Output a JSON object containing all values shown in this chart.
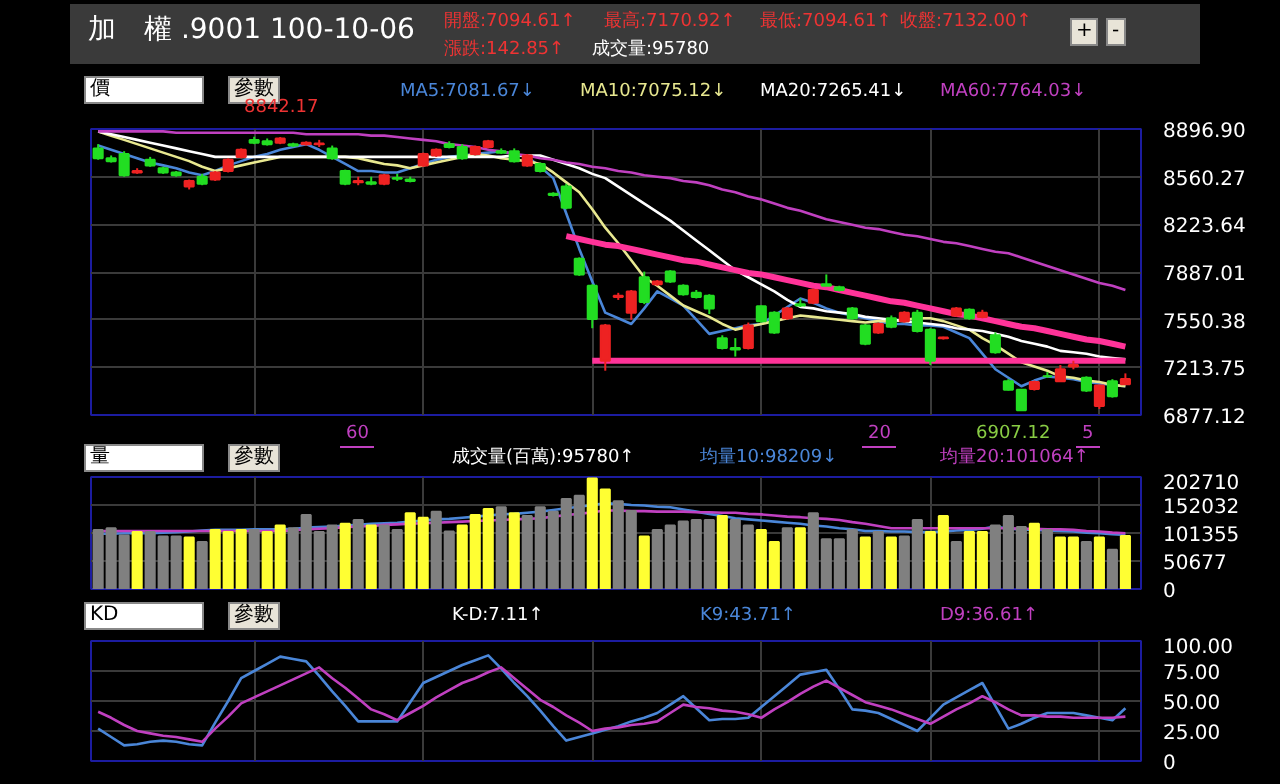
{
  "chart_data": [
    {
      "type": "candlestick",
      "title": "加　權 .9001 100-10-06",
      "categories": [
        null,
        null,
        null,
        null,
        null,
        null,
        null,
        null,
        null,
        null,
        null,
        null,
        null,
        null,
        null,
        null,
        null,
        null,
        null,
        null,
        null,
        null,
        null,
        null,
        null,
        null,
        null,
        null,
        null,
        null,
        null,
        null,
        null,
        null,
        null,
        null,
        null,
        null,
        null,
        null,
        null,
        null,
        null,
        null,
        null,
        null,
        null,
        null,
        null,
        null,
        null,
        null,
        null,
        null,
        null,
        null,
        null,
        null,
        null,
        null,
        null,
        null,
        null,
        null,
        null,
        null,
        null,
        null,
        null,
        null,
        null,
        null,
        null,
        null,
        null,
        null,
        null,
        null,
        null,
        null
      ],
      "ohlc": [
        [
          8760,
          8790,
          8680,
          8690
        ],
        [
          8690,
          8710,
          8660,
          8670
        ],
        [
          8720,
          8740,
          8560,
          8570
        ],
        [
          8590,
          8620,
          8580,
          8600
        ],
        [
          8680,
          8700,
          8630,
          8640
        ],
        [
          8620,
          8630,
          8580,
          8590
        ],
        [
          8590,
          8600,
          8560,
          8570
        ],
        [
          8490,
          8540,
          8470,
          8530
        ],
        [
          8560,
          8580,
          8500,
          8510
        ],
        [
          8540,
          8600,
          8530,
          8590
        ],
        [
          8600,
          8690,
          8590,
          8680
        ],
        [
          8700,
          8760,
          8690,
          8750
        ],
        [
          8820,
          8842.17,
          8790,
          8800
        ],
        [
          8810,
          8830,
          8780,
          8790
        ],
        [
          8800,
          8840,
          8790,
          8830
        ],
        [
          8790,
          8800,
          8770,
          8780
        ],
        [
          8790,
          8810,
          8780,
          8800
        ],
        [
          8790,
          8820,
          8770,
          8795
        ],
        [
          8760,
          8780,
          8680,
          8690
        ],
        [
          8600,
          8610,
          8500,
          8510
        ],
        [
          8520,
          8560,
          8500,
          8530
        ],
        [
          8520,
          8560,
          8500,
          8510
        ],
        [
          8510,
          8580,
          8500,
          8570
        ],
        [
          8550,
          8580,
          8530,
          8545
        ],
        [
          8540,
          8560,
          8520,
          8530
        ],
        [
          8640,
          8730,
          8630,
          8720
        ],
        [
          8710,
          8760,
          8700,
          8750
        ],
        [
          8790,
          8810,
          8760,
          8770
        ],
        [
          8770,
          8790,
          8680,
          8690
        ],
        [
          8720,
          8780,
          8710,
          8770
        ],
        [
          8770,
          8820,
          8760,
          8810
        ],
        [
          8740,
          8760,
          8720,
          8730
        ],
        [
          8740,
          8760,
          8660,
          8670
        ],
        [
          8640,
          8720,
          8630,
          8710
        ],
        [
          8650,
          8660,
          8590,
          8600
        ],
        [
          8440,
          8450,
          8420,
          8430
        ],
        [
          8490,
          8510,
          8330,
          8340
        ],
        [
          7980,
          7990,
          7860,
          7870
        ],
        [
          7790,
          7800,
          7490,
          7555
        ],
        [
          7260,
          7520,
          7190,
          7510
        ],
        [
          7710,
          7740,
          7690,
          7720
        ],
        [
          7600,
          7760,
          7550,
          7750
        ],
        [
          7850,
          7890,
          7660,
          7675
        ],
        [
          7800,
          7830,
          7790,
          7820
        ],
        [
          7890,
          7900,
          7810,
          7820
        ],
        [
          7790,
          7800,
          7720,
          7730
        ],
        [
          7740,
          7760,
          7700,
          7710
        ],
        [
          7720,
          7730,
          7590,
          7630
        ],
        [
          7420,
          7440,
          7340,
          7350
        ],
        [
          7350,
          7420,
          7290,
          7340
        ],
        [
          7350,
          7530,
          7340,
          7510
        ],
        [
          7645,
          7650,
          7530,
          7540
        ],
        [
          7600,
          7610,
          7450,
          7460
        ],
        [
          7560,
          7640,
          7550,
          7630
        ],
        [
          7660,
          7700,
          7640,
          7650
        ],
        [
          7670,
          7770,
          7660,
          7760
        ],
        [
          7800,
          7870,
          7790,
          7790
        ],
        [
          7780,
          7790,
          7750,
          7760
        ],
        [
          7630,
          7640,
          7550,
          7560
        ],
        [
          7510,
          7520,
          7370,
          7380
        ],
        [
          7460,
          7530,
          7450,
          7520
        ],
        [
          7560,
          7580,
          7490,
          7500
        ],
        [
          7540,
          7610,
          7530,
          7600
        ],
        [
          7600,
          7620,
          7460,
          7470
        ],
        [
          7480,
          7490,
          7230,
          7260
        ],
        [
          7420,
          7430,
          7410,
          7425
        ],
        [
          7580,
          7640,
          7570,
          7630
        ],
        [
          7620,
          7630,
          7550,
          7560
        ],
        [
          7570,
          7620,
          7560,
          7600
        ],
        [
          7440,
          7460,
          7310,
          7320
        ],
        [
          7115,
          7130,
          7050,
          7055
        ],
        [
          7055,
          7060,
          6907.12,
          6910
        ],
        [
          7060,
          7120,
          7050,
          7110
        ],
        [
          7150,
          7180,
          7140,
          7150
        ],
        [
          7115,
          7230,
          7110,
          7200
        ],
        [
          7220,
          7260,
          7200,
          7230
        ],
        [
          7140,
          7150,
          7040,
          7050
        ],
        [
          6940,
          7090,
          6920,
          7085
        ],
        [
          7115,
          7130,
          7000,
          7010
        ],
        [
          7094.61,
          7170.92,
          7094.61,
          7132
        ]
      ],
      "colors": [
        "#22dd22",
        "#22dd22",
        "#22dd22",
        "#ee2222",
        "#22dd22",
        "#22dd22",
        "#22dd22",
        "#ee2222",
        "#22dd22",
        "#ee2222",
        "#ee2222",
        "#ee2222",
        "#22dd22",
        "#22dd22",
        "#ee2222",
        "#22dd22",
        "#ee2222",
        "#ee2222",
        "#22dd22",
        "#22dd22",
        "#ee2222",
        "#22dd22",
        "#ee2222",
        "#22dd22",
        "#22dd22",
        "#ee2222",
        "#ee2222",
        "#22dd22",
        "#22dd22",
        "#ee2222",
        "#ee2222",
        "#22dd22",
        "#22dd22",
        "#ee2222",
        "#22dd22",
        "#22dd22",
        "#22dd22",
        "#22dd22",
        "#22dd22",
        "#ee2222",
        "#ee2222",
        "#ee2222",
        "#22dd22",
        "#ee2222",
        "#22dd22",
        "#22dd22",
        "#22dd22",
        "#22dd22",
        "#22dd22",
        "#22dd22",
        "#ee2222",
        "#22dd22",
        "#22dd22",
        "#ee2222",
        "#22dd22",
        "#ee2222",
        "#22dd22",
        "#22dd22",
        "#22dd22",
        "#22dd22",
        "#ee2222",
        "#22dd22",
        "#ee2222",
        "#22dd22",
        "#22dd22",
        "#ee2222",
        "#ee2222",
        "#22dd22",
        "#ee2222",
        "#22dd22",
        "#22dd22",
        "#22dd22",
        "#ee2222",
        "#22dd22",
        "#ee2222",
        "#ee2222",
        "#22dd22",
        "#ee2222",
        "#22dd22",
        "#ee2222"
      ],
      "series": [
        {
          "name": "MA5:7081.67↓",
          "type": "line",
          "color": "#4a86d8",
          "values": [
            8780,
            8750,
            8720,
            8690,
            8660,
            8640,
            8620,
            8590,
            8570,
            8600,
            8640,
            8670,
            8700,
            8720,
            8750,
            8770,
            8790,
            8750,
            8700,
            8650,
            8600,
            8600,
            8590,
            8590,
            8620,
            8650,
            8680,
            8700,
            8710,
            8720,
            8730,
            8740,
            8720,
            8700,
            8630,
            8550,
            8300,
            8050,
            7820,
            7600,
            7560,
            7520,
            7630,
            7750,
            7700,
            7650,
            7550,
            7450,
            7470,
            7490,
            7510,
            7520,
            7580,
            7640,
            7700,
            7670,
            7630,
            7600,
            7580,
            7560,
            7540,
            7520,
            7520,
            7510,
            7510,
            7500,
            7460,
            7420,
            7310,
            7200,
            7140,
            7080,
            7120,
            7150,
            7140,
            7130,
            7110,
            7100,
            7090,
            7080
          ]
        },
        {
          "name": "MA10:7075.12↓",
          "type": "line",
          "color": "#e8e890",
          "values": [
            8880,
            8850,
            8820,
            8790,
            8760,
            8730,
            8700,
            8670,
            8630,
            8600,
            8620,
            8640,
            8660,
            8680,
            8700,
            8700,
            8700,
            8700,
            8700,
            8700,
            8690,
            8670,
            8650,
            8640,
            8620,
            8640,
            8660,
            8680,
            8700,
            8720,
            8710,
            8690,
            8680,
            8670,
            8650,
            8590,
            8520,
            8450,
            8330,
            8200,
            8090,
            7970,
            7850,
            7790,
            7720,
            7650,
            7610,
            7570,
            7520,
            7480,
            7500,
            7520,
            7540,
            7560,
            7580,
            7570,
            7560,
            7550,
            7540,
            7530,
            7540,
            7540,
            7550,
            7560,
            7560,
            7540,
            7510,
            7480,
            7420,
            7370,
            7310,
            7250,
            7220,
            7190,
            7150,
            7140,
            7120,
            7110,
            7090,
            7080
          ]
        },
        {
          "name": "MA20:7265.41↓",
          "type": "line",
          "color": "#ffffff",
          "values": [
            8880,
            8860,
            8840,
            8820,
            8800,
            8780,
            8760,
            8740,
            8720,
            8700,
            8700,
            8700,
            8700,
            8700,
            8700,
            8700,
            8700,
            8700,
            8700,
            8700,
            8700,
            8700,
            8700,
            8700,
            8700,
            8700,
            8700,
            8700,
            8700,
            8700,
            8700,
            8700,
            8710,
            8710,
            8710,
            8680,
            8650,
            8620,
            8580,
            8550,
            8490,
            8430,
            8370,
            8310,
            8250,
            8180,
            8110,
            8040,
            7970,
            7900,
            7850,
            7800,
            7750,
            7690,
            7640,
            7630,
            7610,
            7600,
            7590,
            7570,
            7560,
            7550,
            7540,
            7530,
            7520,
            7510,
            7490,
            7480,
            7470,
            7450,
            7430,
            7400,
            7380,
            7360,
            7330,
            7320,
            7310,
            7290,
            7280,
            7270
          ]
        },
        {
          "name": "MA60:7764.03↓",
          "type": "line",
          "color": "#c040c0",
          "values": [
            8880,
            8880,
            8880,
            8880,
            8880,
            8880,
            8870,
            8870,
            8870,
            8870,
            8870,
            8870,
            8870,
            8870,
            8870,
            8870,
            8860,
            8860,
            8860,
            8860,
            8860,
            8850,
            8850,
            8840,
            8830,
            8820,
            8810,
            8790,
            8780,
            8770,
            8750,
            8740,
            8720,
            8710,
            8690,
            8680,
            8660,
            8650,
            8630,
            8620,
            8600,
            8590,
            8570,
            8560,
            8550,
            8530,
            8520,
            8500,
            8470,
            8450,
            8420,
            8400,
            8370,
            8340,
            8320,
            8290,
            8260,
            8240,
            8220,
            8200,
            8190,
            8170,
            8150,
            8140,
            8120,
            8100,
            8090,
            8070,
            8050,
            8030,
            8020,
            7990,
            7960,
            7930,
            7900,
            7870,
            7840,
            7810,
            7790,
            7760
          ]
        },
        {
          "type": "line",
          "color": "#ff3399",
          "values": [
            null,
            null,
            null,
            null,
            null,
            null,
            null,
            null,
            null,
            null,
            null,
            null,
            null,
            null,
            null,
            null,
            null,
            null,
            null,
            null,
            null,
            null,
            null,
            null,
            null,
            null,
            null,
            null,
            null,
            null,
            null,
            null,
            null,
            null,
            null,
            null,
            8140,
            8120,
            8100,
            8080,
            8070,
            8050,
            8030,
            8010,
            7990,
            7970,
            7960,
            7940,
            7920,
            7900,
            7880,
            7870,
            7850,
            7830,
            7810,
            7790,
            7780,
            7760,
            7740,
            7720,
            7700,
            7680,
            7670,
            7650,
            7630,
            7610,
            7590,
            7580,
            7560,
            7540,
            7520,
            7500,
            7490,
            7470,
            7450,
            7430,
            7410,
            7400,
            7380,
            7360
          ]
        },
        {
          "type": "line",
          "color": "#ff3399",
          "values": [
            null,
            null,
            null,
            null,
            null,
            null,
            null,
            null,
            null,
            null,
            null,
            null,
            null,
            null,
            null,
            null,
            null,
            null,
            null,
            null,
            null,
            null,
            null,
            null,
            null,
            null,
            null,
            null,
            null,
            null,
            null,
            null,
            null,
            null,
            null,
            null,
            null,
            null,
            7260,
            7260,
            7260,
            7260,
            7260,
            7260,
            7260,
            7260,
            7260,
            7260,
            7260,
            7260,
            7260,
            7260,
            7260,
            7260,
            7260,
            7260,
            7260,
            7260,
            7260,
            7260,
            7260,
            7260,
            7260,
            7260,
            7260,
            7260,
            7260,
            7260,
            7260,
            7260,
            7260,
            7260,
            7260,
            7260,
            7260,
            7260,
            7260,
            7260,
            7260,
            7260
          ]
        }
      ],
      "ylim": [
        6877.12,
        8896.9
      ],
      "yticks": [
        6877.12,
        7213.75,
        7550.38,
        7887.01,
        8223.64,
        8560.27,
        {
          "value": 8896.9,
          "label": "8896.90"
        }
      ],
      "tick_labels": "y",
      "grid": true,
      "annotations": [
        "開盤:7094.61↑",
        "最高:7170.92↑",
        "最低:7094.61↑",
        "收盤:7132.00↑",
        "漲跌:142.85↑",
        "成交量:95780",
        "價",
        "參數",
        "+",
        "-",
        "8842.17",
        "60",
        "20",
        "6907.12",
        "5"
      ]
    },
    {
      "type": "bar",
      "categories": [
        null,
        null,
        null,
        null,
        null,
        null,
        null,
        null,
        null,
        null,
        null,
        null,
        null,
        null,
        null,
        null,
        null,
        null,
        null,
        null,
        null,
        null,
        null,
        null,
        null,
        null,
        null,
        null,
        null,
        null,
        null,
        null,
        null,
        null,
        null,
        null,
        null,
        null,
        null,
        null,
        null,
        null,
        null,
        null,
        null,
        null,
        null,
        null,
        null,
        null,
        null,
        null,
        null,
        null,
        null,
        null,
        null,
        null,
        null,
        null,
        null,
        null,
        null,
        null,
        null,
        null,
        null,
        null,
        null,
        null,
        null,
        null,
        null,
        null,
        null,
        null,
        null,
        null,
        null,
        null
      ],
      "values": [
        107000,
        110000,
        97000,
        103000,
        103000,
        95000,
        95000,
        93000,
        85000,
        107000,
        103000,
        107000,
        107000,
        103000,
        115000,
        110000,
        134000,
        103000,
        115000,
        118000,
        125000,
        115000,
        115000,
        107000,
        137000,
        129000,
        140000,
        104000,
        115000,
        134000,
        145000,
        148000,
        137000,
        132000,
        148000,
        140000,
        163000,
        169000,
        200000,
        180000,
        159000,
        141000,
        95000,
        107000,
        115000,
        122000,
        125000,
        125000,
        132000,
        125000,
        115000,
        107000,
        85000,
        110000,
        110000,
        137000,
        90000,
        90000,
        107000,
        93000,
        103000,
        93000,
        95000,
        125000,
        103000,
        132000,
        85000,
        103000,
        103000,
        115000,
        132000,
        112000,
        118000,
        107000,
        93000,
        93000,
        85000,
        93000,
        71000,
        96000
      ],
      "colors": [
        "#808080",
        "#808080",
        "#808080",
        "#ffff33",
        "#808080",
        "#808080",
        "#808080",
        "#ffff33",
        "#808080",
        "#ffff33",
        "#ffff33",
        "#ffff33",
        "#808080",
        "#ffff33",
        "#ffff33",
        "#808080",
        "#808080",
        "#808080",
        "#808080",
        "#ffff33",
        "#808080",
        "#ffff33",
        "#808080",
        "#808080",
        "#ffff33",
        "#ffff33",
        "#808080",
        "#808080",
        "#ffff33",
        "#ffff33",
        "#ffff33",
        "#808080",
        "#ffff33",
        "#808080",
        "#808080",
        "#808080",
        "#808080",
        "#808080",
        "#ffff33",
        "#ffff33",
        "#808080",
        "#808080",
        "#ffff33",
        "#808080",
        "#808080",
        "#808080",
        "#808080",
        "#808080",
        "#ffff33",
        "#808080",
        "#808080",
        "#ffff33",
        "#ffff33",
        "#808080",
        "#ffff33",
        "#808080",
        "#808080",
        "#808080",
        "#808080",
        "#ffff33",
        "#808080",
        "#ffff33",
        "#808080",
        "#808080",
        "#ffff33",
        "#ffff33",
        "#808080",
        "#ffff33",
        "#ffff33",
        "#808080",
        "#808080",
        "#808080",
        "#ffff33",
        "#808080",
        "#ffff33",
        "#ffff33",
        "#808080",
        "#ffff33",
        "#808080",
        "#ffff33"
      ],
      "series": [
        {
          "name": "均量10:98209↓",
          "type": "line",
          "color": "#4a86d8",
          "values": [
            100000,
            100000,
            101000,
            101000,
            101000,
            102000,
            103000,
            104000,
            106000,
            107000,
            107000,
            107000,
            108000,
            108000,
            108000,
            109000,
            111000,
            112000,
            113000,
            115000,
            116000,
            118000,
            119000,
            120000,
            122000,
            124000,
            126000,
            127000,
            129000,
            131000,
            133000,
            135000,
            136000,
            138000,
            140000,
            143000,
            146000,
            149000,
            152000,
            155000,
            154000,
            152000,
            151000,
            149000,
            148000,
            144000,
            140000,
            136000,
            132000,
            128000,
            126000,
            124000,
            122000,
            120000,
            118000,
            115000,
            113000,
            110000,
            108000,
            105000,
            105000,
            104000,
            104000,
            103000,
            103000,
            104000,
            106000,
            107000,
            109000,
            113000,
            109000,
            108000,
            107000,
            106000,
            105000,
            104000,
            102000,
            101000,
            99000,
            98000
          ]
        },
        {
          "name": "均量20:101064↑",
          "type": "line",
          "color": "#c040c0",
          "values": [
            105000,
            105000,
            105000,
            105000,
            105000,
            105000,
            105000,
            105000,
            105000,
            105000,
            105000,
            105000,
            105000,
            105000,
            105000,
            106000,
            108000,
            109000,
            110000,
            112000,
            113000,
            114000,
            116000,
            117000,
            118000,
            119000,
            120000,
            121000,
            122000,
            123000,
            124000,
            125000,
            126000,
            127000,
            128000,
            131000,
            134000,
            136000,
            139000,
            142000,
            142000,
            141000,
            141000,
            140000,
            140000,
            140000,
            139000,
            139000,
            138000,
            138000,
            136000,
            135000,
            133000,
            131000,
            130000,
            128000,
            127000,
            125000,
            121000,
            118000,
            114000,
            110000,
            110000,
            110000,
            110000,
            110000,
            110000,
            110000,
            110000,
            110000,
            110000,
            109000,
            109000,
            108000,
            108000,
            107000,
            105000,
            104000,
            102000,
            101000
          ]
        }
      ],
      "ylim": [
        0,
        202710
      ],
      "yticks": [
        0,
        50677,
        101355,
        152032,
        202710
      ],
      "tick_labels": "y",
      "grid": true,
      "annotations": [
        "成交量(百萬):95780↑",
        "量",
        "參數"
      ]
    },
    {
      "type": "line",
      "categories": [
        null,
        null,
        null,
        null,
        null,
        null,
        null,
        null,
        null,
        null,
        null,
        null,
        null,
        null,
        null,
        null,
        null,
        null,
        null,
        null,
        null,
        null,
        null,
        null,
        null,
        null,
        null,
        null,
        null,
        null,
        null,
        null,
        null,
        null,
        null,
        null,
        null,
        null,
        null,
        null,
        null,
        null,
        null,
        null,
        null,
        null,
        null,
        null,
        null,
        null,
        null,
        null,
        null,
        null,
        null,
        null,
        null,
        null,
        null,
        null,
        null,
        null,
        null,
        null,
        null,
        null,
        null,
        null,
        null,
        null,
        null,
        null,
        null,
        null,
        null,
        null,
        null,
        null,
        null,
        null
      ],
      "series": [
        {
          "name": "K9:43.71↑",
          "color": "#4a86d8",
          "values": [
            27,
            20,
            13,
            14,
            16,
            17,
            16,
            14,
            13,
            32,
            50,
            69,
            75,
            81,
            87,
            85,
            83,
            71,
            58,
            46,
            33,
            33,
            33,
            33,
            49,
            65,
            70,
            75,
            80,
            84,
            88,
            77,
            65,
            54,
            42,
            29,
            17,
            20,
            23,
            26,
            29,
            33,
            36,
            40,
            47,
            54,
            44,
            34,
            35,
            35,
            36,
            45,
            54,
            63,
            72,
            74,
            76,
            60,
            43,
            42,
            40,
            35,
            30,
            25,
            36,
            47,
            53,
            59,
            65,
            46,
            27,
            31,
            36,
            40,
            40,
            40,
            38,
            36,
            34,
            44
          ]
        },
        {
          "name": "D9:36.61↑",
          "color": "#c040c0",
          "values": [
            41,
            36,
            30,
            25,
            23,
            21,
            20,
            18,
            16,
            27,
            37,
            48,
            53,
            58,
            63,
            68,
            73,
            78,
            69,
            61,
            52,
            43,
            39,
            34,
            40,
            46,
            53,
            59,
            65,
            69,
            74,
            78,
            69,
            60,
            51,
            45,
            38,
            32,
            25,
            27,
            28,
            30,
            31,
            33,
            40,
            47,
            45,
            44,
            42,
            41,
            39,
            36,
            43,
            49,
            56,
            62,
            67,
            61,
            55,
            49,
            46,
            43,
            39,
            35,
            31,
            37,
            43,
            48,
            54,
            49,
            43,
            38,
            38,
            37,
            37,
            36,
            36,
            36,
            36,
            37
          ]
        }
      ],
      "ylim": [
        0,
        100
      ],
      "yticks": [
        0,
        {
          "value": 25,
          "label": "25.00"
        },
        {
          "value": 50,
          "label": "50.00"
        },
        {
          "value": 75,
          "label": "75.00"
        },
        {
          "value": 100,
          "label": "100.00"
        }
      ],
      "tick_labels": "y",
      "grid": true,
      "annotations": [
        "K-D:7.11↑",
        "KD",
        "參數"
      ]
    }
  ]
}
